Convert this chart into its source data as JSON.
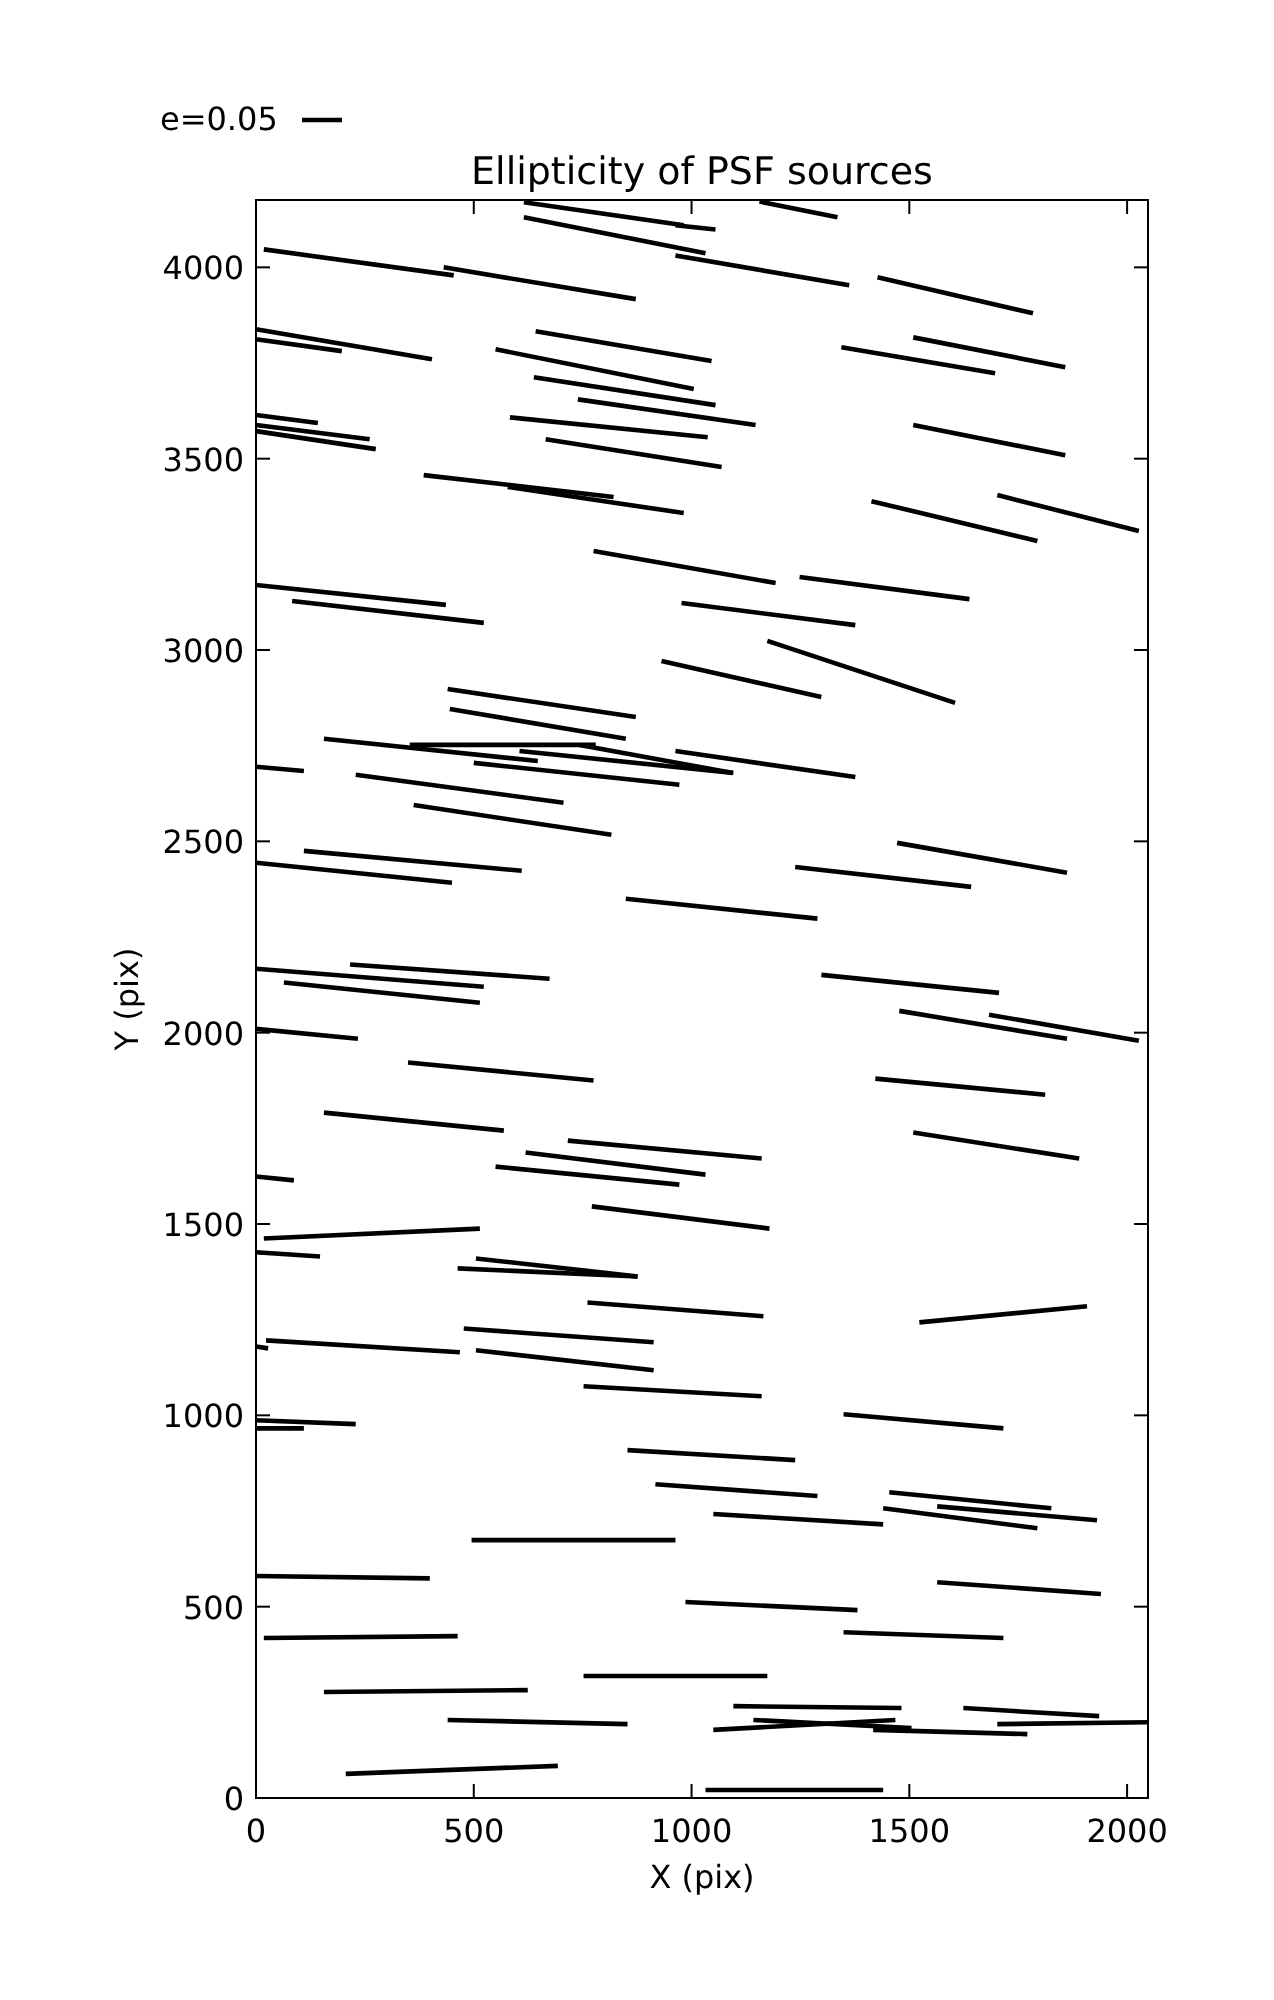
{
  "chart_data": {
    "type": "line",
    "title": "Ellipticity of PSF sources",
    "xlabel": "X (pix)",
    "ylabel": "Y (pix)",
    "annotations": [
      "e=0.05"
    ],
    "color": "#000000",
    "xlim": [
      0,
      2048
    ],
    "ylim": [
      0,
      4176
    ],
    "xticks": [
      0,
      500,
      1000,
      1500,
      2000
    ],
    "yticks": [
      0,
      500,
      1000,
      1500,
      2000,
      2500,
      3000,
      3500,
      4000
    ],
    "grid": false,
    "line_style": "solid",
    "series": [
      {
        "x": [
          615,
          982
        ],
        "values": [
          4170,
          4110
        ]
      },
      {
        "x": [
          1156,
          1335
        ],
        "values": [
          4172,
          4131
        ]
      },
      {
        "x": [
          615,
          1032
        ],
        "values": [
          4131,
          4037
        ]
      },
      {
        "x": [
          963,
          1055
        ],
        "values": [
          4110,
          4099
        ]
      },
      {
        "x": [
          963,
          1362
        ],
        "values": [
          4031,
          3953
        ]
      },
      {
        "x": [
          1427,
          1784
        ],
        "values": [
          3974,
          3880
        ]
      },
      {
        "x": [
          18,
          454
        ],
        "values": [
          4047,
          3979
        ]
      },
      {
        "x": [
          431,
          872
        ],
        "values": [
          4000,
          3917
        ]
      },
      {
        "x": [
          0,
          404
        ],
        "values": [
          3838,
          3760
        ]
      },
      {
        "x": [
          0,
          197
        ],
        "values": [
          3812,
          3781
        ]
      },
      {
        "x": [
          642,
          1046
        ],
        "values": [
          3833,
          3755
        ]
      },
      {
        "x": [
          550,
          1005
        ],
        "values": [
          3786,
          3682
        ]
      },
      {
        "x": [
          638,
          1055
        ],
        "values": [
          3713,
          3640
        ]
      },
      {
        "x": [
          739,
          1147
        ],
        "values": [
          3655,
          3588
        ]
      },
      {
        "x": [
          1344,
          1697
        ],
        "values": [
          3791,
          3723
        ]
      },
      {
        "x": [
          1509,
          1858
        ],
        "values": [
          3817,
          3739
        ]
      },
      {
        "x": [
          583,
          1037
        ],
        "values": [
          3608,
          3556
        ]
      },
      {
        "x": [
          665,
          1069
        ],
        "values": [
          3551,
          3478
        ]
      },
      {
        "x": [
          0,
          142
        ],
        "values": [
          3614,
          3593
        ]
      },
      {
        "x": [
          0,
          261
        ],
        "values": [
          3588,
          3551
        ]
      },
      {
        "x": [
          0,
          275
        ],
        "values": [
          3572,
          3525
        ]
      },
      {
        "x": [
          1509,
          1858
        ],
        "values": [
          3588,
          3509
        ]
      },
      {
        "x": [
          385,
          821
        ],
        "values": [
          3457,
          3400
        ]
      },
      {
        "x": [
          578,
          982
        ],
        "values": [
          3426,
          3358
        ]
      },
      {
        "x": [
          1413,
          1794
        ],
        "values": [
          3389,
          3285
        ]
      },
      {
        "x": [
          1702,
          2027
        ],
        "values": [
          3405,
          3311
        ]
      },
      {
        "x": [
          0,
          436
        ],
        "values": [
          3170,
          3118
        ]
      },
      {
        "x": [
          83,
          523
        ],
        "values": [
          3128,
          3071
        ]
      },
      {
        "x": [
          775,
          1193
        ],
        "values": [
          3259,
          3175
        ]
      },
      {
        "x": [
          1248,
          1638
        ],
        "values": [
          3191,
          3133
        ]
      },
      {
        "x": [
          977,
          1376
        ],
        "values": [
          3123,
          3065
        ]
      },
      {
        "x": [
          931,
          1298
        ],
        "values": [
          2971,
          2877
        ]
      },
      {
        "x": [
          1174,
          1605
        ],
        "values": [
          3024,
          2862
        ]
      },
      {
        "x": [
          440,
          872
        ],
        "values": [
          2898,
          2825
        ]
      },
      {
        "x": [
          445,
          849
        ],
        "values": [
          2846,
          2768
        ]
      },
      {
        "x": [
          156,
          647
        ],
        "values": [
          2768,
          2710
        ]
      },
      {
        "x": [
          353,
          780
        ],
        "values": [
          2752,
          2752
        ]
      },
      {
        "x": [
          743,
          1092
        ],
        "values": [
          2752,
          2679
        ]
      },
      {
        "x": [
          963,
          1376
        ],
        "values": [
          2736,
          2668
        ]
      },
      {
        "x": [
          605,
          1096
        ],
        "values": [
          2736,
          2679
        ]
      },
      {
        "x": [
          500,
          972
        ],
        "values": [
          2705,
          2648
        ]
      },
      {
        "x": [
          0,
          110
        ],
        "values": [
          2695,
          2684
        ]
      },
      {
        "x": [
          229,
          706
        ],
        "values": [
          2674,
          2601
        ]
      },
      {
        "x": [
          362,
          816
        ],
        "values": [
          2595,
          2517
        ]
      },
      {
        "x": [
          110,
          610
        ],
        "values": [
          2475,
          2423
        ]
      },
      {
        "x": [
          0,
          450
        ],
        "values": [
          2444,
          2392
        ]
      },
      {
        "x": [
          849,
          1289
        ],
        "values": [
          2350,
          2298
        ]
      },
      {
        "x": [
          1472,
          1862
        ],
        "values": [
          2496,
          2418
        ]
      },
      {
        "x": [
          1238,
          1642
        ],
        "values": [
          2433,
          2381
        ]
      },
      {
        "x": [
          0,
          523
        ],
        "values": [
          2167,
          2120
        ]
      },
      {
        "x": [
          216,
          674
        ],
        "values": [
          2178,
          2141
        ]
      },
      {
        "x": [
          64,
          514
        ],
        "values": [
          2131,
          2078
        ]
      },
      {
        "x": [
          1298,
          1706
        ],
        "values": [
          2151,
          2104
        ]
      },
      {
        "x": [
          1477,
          1862
        ],
        "values": [
          2057,
          1984
        ]
      },
      {
        "x": [
          1683,
          2027
        ],
        "values": [
          2047,
          1979
        ]
      },
      {
        "x": [
          0,
          234
        ],
        "values": [
          2010,
          1984
        ]
      },
      {
        "x": [
          349,
          775
        ],
        "values": [
          1922,
          1875
        ]
      },
      {
        "x": [
          1422,
          1812
        ],
        "values": [
          1880,
          1838
        ]
      },
      {
        "x": [
          156,
          569
        ],
        "values": [
          1791,
          1744
        ]
      },
      {
        "x": [
          1509,
          1890
        ],
        "values": [
          1739,
          1671
        ]
      },
      {
        "x": [
          716,
          1161
        ],
        "values": [
          1718,
          1671
        ]
      },
      {
        "x": [
          619,
          1032
        ],
        "values": [
          1687,
          1629
        ]
      },
      {
        "x": [
          550,
          972
        ],
        "values": [
          1650,
          1603
        ]
      },
      {
        "x": [
          0,
          87
        ],
        "values": [
          1624,
          1614
        ]
      },
      {
        "x": [
          771,
          1179
        ],
        "values": [
          1546,
          1488
        ]
      },
      {
        "x": [
          18,
          514
        ],
        "values": [
          1462,
          1488
        ]
      },
      {
        "x": [
          0,
          147
        ],
        "values": [
          1426,
          1415
        ]
      },
      {
        "x": [
          505,
          876
        ],
        "values": [
          1410,
          1363
        ]
      },
      {
        "x": [
          463,
          876
        ],
        "values": [
          1384,
          1363
        ]
      },
      {
        "x": [
          761,
          1165
        ],
        "values": [
          1295,
          1259
        ]
      },
      {
        "x": [
          1523,
          1908
        ],
        "values": [
          1243,
          1285
        ]
      },
      {
        "x": [
          23,
          468
        ],
        "values": [
          1196,
          1165
        ]
      },
      {
        "x": [
          0,
          28
        ],
        "values": [
          1180,
          1175
        ]
      },
      {
        "x": [
          477,
          913
        ],
        "values": [
          1227,
          1191
        ]
      },
      {
        "x": [
          505,
          913
        ],
        "values": [
          1170,
          1118
        ]
      },
      {
        "x": [
          752,
          1161
        ],
        "values": [
          1076,
          1050
        ]
      },
      {
        "x": [
          0,
          229
        ],
        "values": [
          987,
          977
        ]
      },
      {
        "x": [
          0,
          110
        ],
        "values": [
          966,
          966
        ]
      },
      {
        "x": [
          1349,
          1716
        ],
        "values": [
          1003,
          966
        ]
      },
      {
        "x": [
          853,
          1238
        ],
        "values": [
          909,
          883
        ]
      },
      {
        "x": [
          917,
          1289
        ],
        "values": [
          820,
          789
        ]
      },
      {
        "x": [
          1050,
          1440
        ],
        "values": [
          742,
          715
        ]
      },
      {
        "x": [
          1454,
          1826
        ],
        "values": [
          799,
          757
        ]
      },
      {
        "x": [
          1564,
          1931
        ],
        "values": [
          762,
          726
        ]
      },
      {
        "x": [
          1440,
          1794
        ],
        "values": [
          757,
          705
        ]
      },
      {
        "x": [
          495,
          963
        ],
        "values": [
          674,
          674
        ]
      },
      {
        "x": [
          0,
          399
        ],
        "values": [
          580,
          574
        ]
      },
      {
        "x": [
          986,
          1381
        ],
        "values": [
          512,
          491
        ]
      },
      {
        "x": [
          1564,
          1940
        ],
        "values": [
          564,
          533
        ]
      },
      {
        "x": [
          18,
          463
        ],
        "values": [
          418,
          423
        ]
      },
      {
        "x": [
          1349,
          1716
        ],
        "values": [
          433,
          418
        ]
      },
      {
        "x": [
          752,
          1174
        ],
        "values": [
          319,
          319
        ]
      },
      {
        "x": [
          156,
          624
        ],
        "values": [
          277,
          282
        ]
      },
      {
        "x": [
          1096,
          1482
        ],
        "values": [
          240,
          235
        ]
      },
      {
        "x": [
          1624,
          1936
        ],
        "values": [
          235,
          214
        ]
      },
      {
        "x": [
          1142,
          1505
        ],
        "values": [
          204,
          183
        ]
      },
      {
        "x": [
          1050,
          1468
        ],
        "values": [
          178,
          204
        ]
      },
      {
        "x": [
          1417,
          1771
        ],
        "values": [
          178,
          167
        ]
      },
      {
        "x": [
          1702,
          2048
        ],
        "values": [
          193,
          198
        ]
      },
      {
        "x": [
          440,
          853
        ],
        "values": [
          204,
          193
        ]
      },
      {
        "x": [
          206,
          693
        ],
        "values": [
          63,
          84
        ]
      },
      {
        "x": [
          1032,
          1440
        ],
        "values": [
          21,
          21
        ]
      }
    ]
  }
}
